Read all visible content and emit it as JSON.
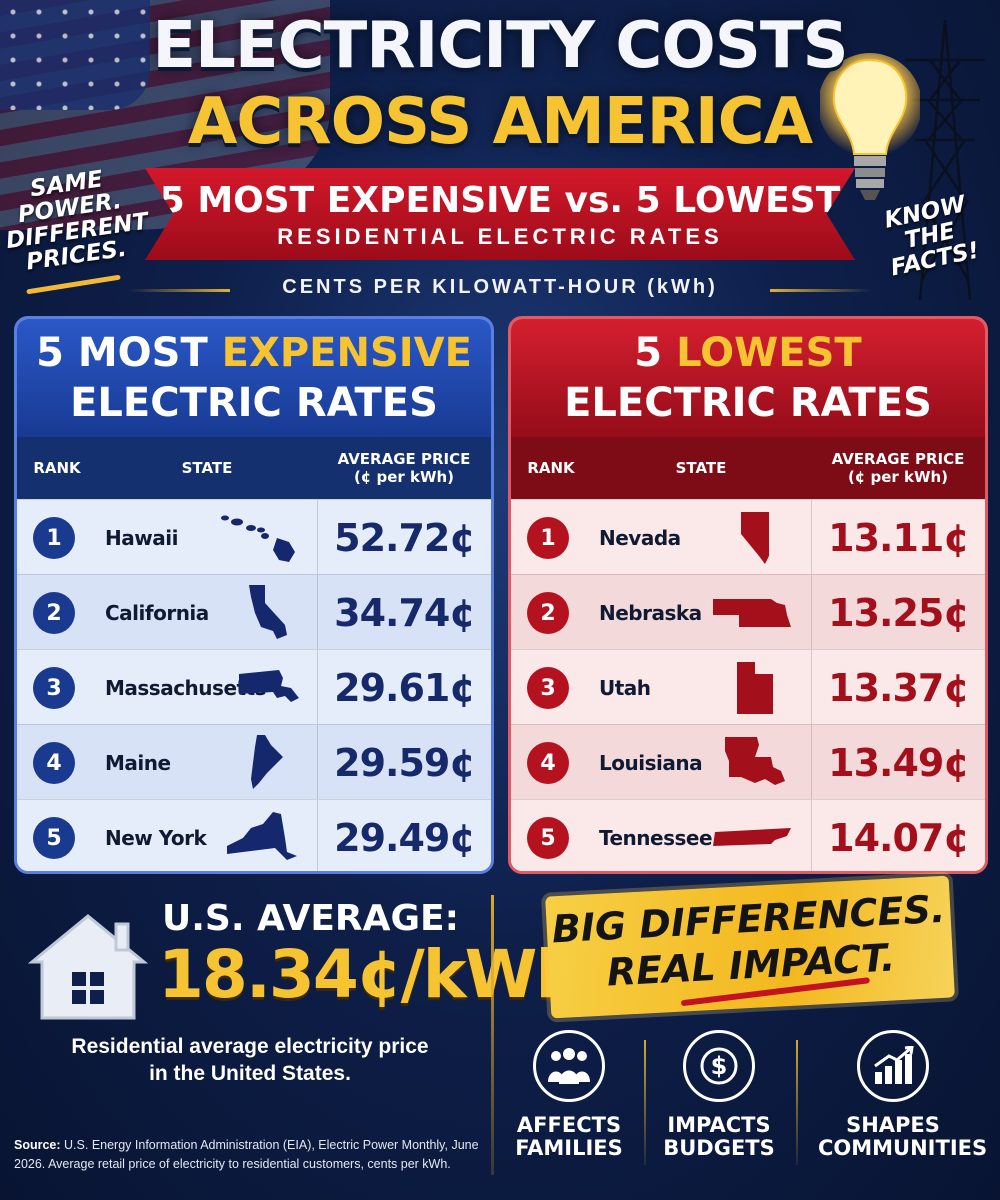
{
  "title": {
    "line1": "ELECTRICITY COSTS",
    "line2": "ACROSS AMERICA"
  },
  "ribbon": {
    "top": "5 MOST EXPENSIVE vs. 5 LOWEST",
    "bottom": "RESIDENTIAL ELECTRIC RATES"
  },
  "units": "CENTS PER KILOWATT-HOUR (kWh)",
  "side_left": [
    "SAME",
    "POWER.",
    "DIFFERENT",
    "PRICES."
  ],
  "side_right": [
    "KNOW",
    "THE",
    "FACTS!"
  ],
  "expensive": {
    "title_num": "5 MOST",
    "title_highlight": "EXPENSIVE",
    "title_line2": "ELECTRIC RATES",
    "headers": {
      "rank": "RANK",
      "state": "STATE",
      "price_line1": "AVERAGE PRICE",
      "price_line2": "(¢ per kWh)"
    },
    "rows": [
      {
        "rank": "1",
        "state": "Hawaii",
        "price": "52.72¢",
        "shape": "hawaii-icon"
      },
      {
        "rank": "2",
        "state": "California",
        "price": "34.74¢",
        "shape": "california-icon"
      },
      {
        "rank": "3",
        "state": "Massachusetts",
        "price": "29.61¢",
        "shape": "massachusetts-icon"
      },
      {
        "rank": "4",
        "state": "Maine",
        "price": "29.59¢",
        "shape": "maine-icon"
      },
      {
        "rank": "5",
        "state": "New York",
        "price": "29.49¢",
        "shape": "new-york-icon"
      }
    ]
  },
  "lowest": {
    "title_num": "5",
    "title_highlight": "LOWEST",
    "title_line2": "ELECTRIC RATES",
    "headers": {
      "rank": "RANK",
      "state": "STATE",
      "price_line1": "AVERAGE PRICE",
      "price_line2": "(¢ per kWh)"
    },
    "rows": [
      {
        "rank": "1",
        "state": "Nevada",
        "price": "13.11¢",
        "shape": "nevada-icon"
      },
      {
        "rank": "2",
        "state": "Nebraska",
        "price": "13.25¢",
        "shape": "nebraska-icon"
      },
      {
        "rank": "3",
        "state": "Utah",
        "price": "13.37¢",
        "shape": "utah-icon"
      },
      {
        "rank": "4",
        "state": "Louisiana",
        "price": "13.49¢",
        "shape": "louisiana-icon"
      },
      {
        "rank": "5",
        "state": "Tennessee",
        "price": "14.07¢",
        "shape": "tennessee-icon"
      }
    ]
  },
  "average": {
    "label": "U.S. AVERAGE:",
    "value": "18.34¢/kWh",
    "desc_line1": "Residential average electricity price",
    "desc_line2": "in the United States."
  },
  "banner": {
    "line1": "BIG DIFFERENCES.",
    "line2": "REAL IMPACT."
  },
  "impacts": [
    {
      "line1": "AFFECTS",
      "line2": "FAMILIES",
      "icon": "family-icon"
    },
    {
      "line1": "IMPACTS",
      "line2": "BUDGETS",
      "icon": "dollar-icon"
    },
    {
      "line1": "SHAPES",
      "line2": "COMMUNITIES",
      "icon": "growth-chart-icon"
    }
  ],
  "source": {
    "label": "Source:",
    "text": "U.S. Energy Information Administration (EIA), Electric Power Monthly, June 2026. Average retail price of electricity to residential customers, cents per kWh."
  },
  "colors": {
    "gold": "#f6c433",
    "blue_panel": "#1a3a8f",
    "red_panel": "#b5121f",
    "background": "#0e1f4a"
  }
}
